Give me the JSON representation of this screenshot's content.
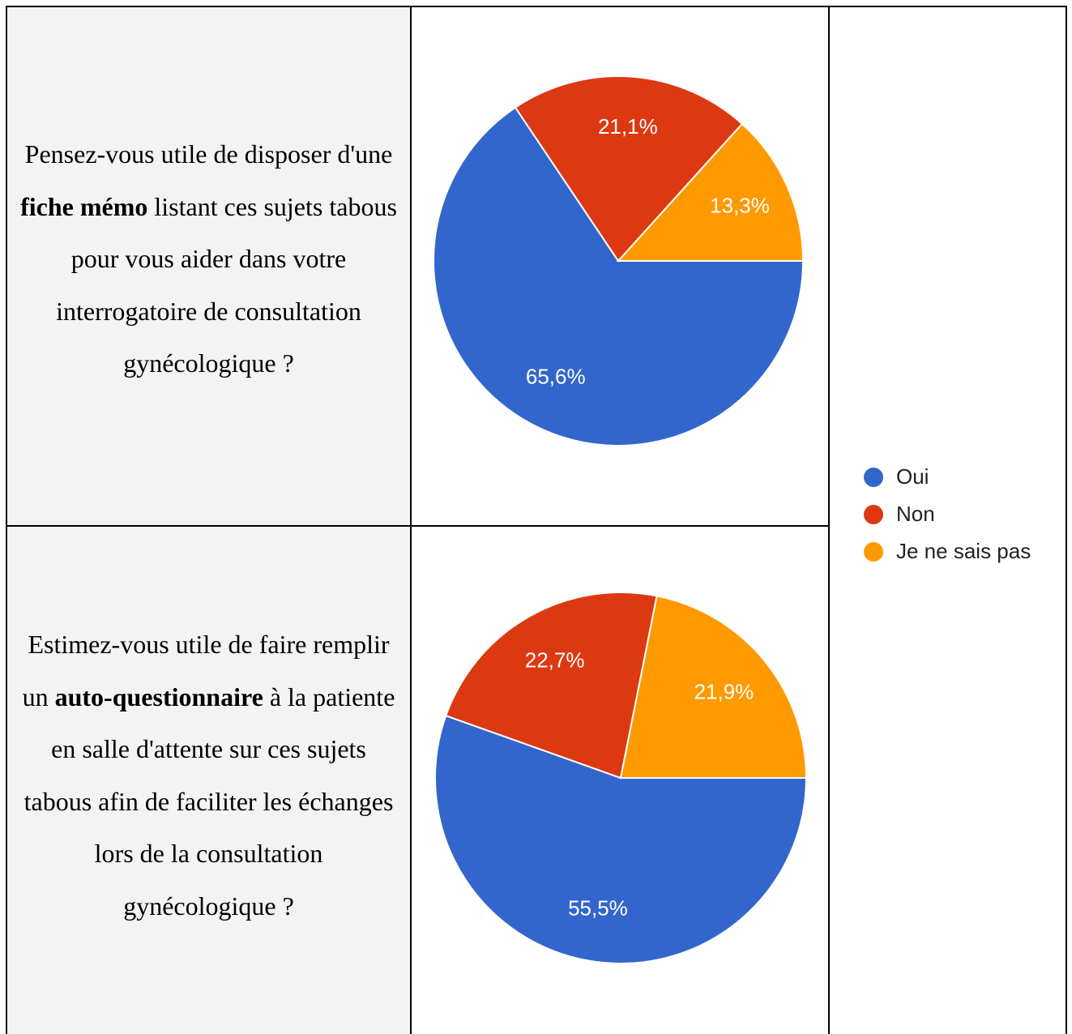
{
  "questions": [
    [
      {
        "text": "Pensez-vous utile de disposer d'une "
      },
      {
        "text": "fiche mémo",
        "bold": true
      },
      {
        "text": " listant ces sujets tabous pour vous aider dans votre interrogatoire de consultation gynécologique ?"
      }
    ],
    [
      {
        "text": "Estimez-vous utile de faire remplir un "
      },
      {
        "text": "auto-questionnaire",
        "bold": true
      },
      {
        "text": " à la patiente en salle d'attente sur ces sujets tabous afin de faciliter les échanges lors de la consultation gynécologique ?"
      }
    ]
  ],
  "legend": {
    "categories": [
      "Oui",
      "Non",
      "Je ne sais pas"
    ],
    "colors": [
      "#3366cc",
      "#dc3912",
      "#ff9900"
    ]
  },
  "chart_data": [
    {
      "type": "pie",
      "values": [
        65.6,
        21.1,
        13.3
      ],
      "value_labels": [
        "65,6%",
        "21,1%",
        "13,3%"
      ]
    },
    {
      "type": "pie",
      "values": [
        55.5,
        22.7,
        21.9
      ],
      "value_labels": [
        "55,5%",
        "22,7%",
        "21,9%"
      ]
    }
  ]
}
